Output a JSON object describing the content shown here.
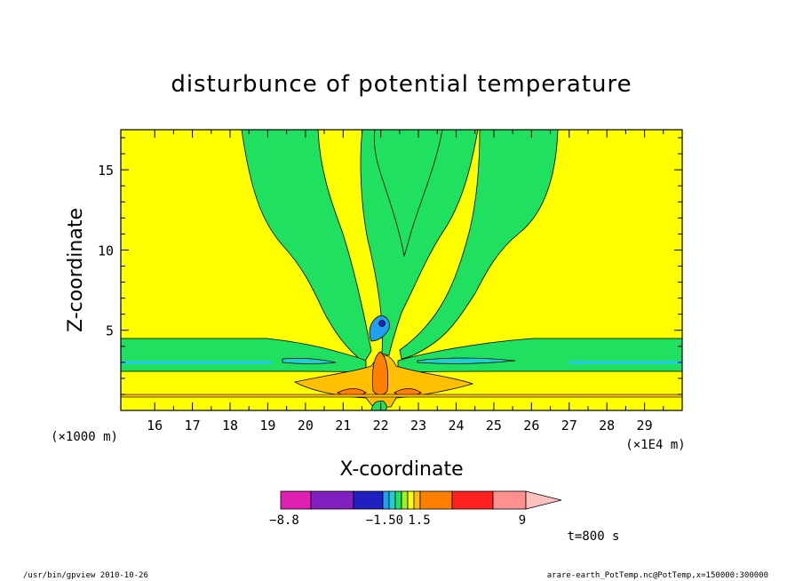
{
  "chart_data": {
    "type": "heatmap",
    "title": "disturbunce of potential temperature",
    "xlabel": "X-coordinate",
    "ylabel": "Z-coordinate",
    "x_scale_note": "(×1E4 m)",
    "y_scale_note": "(×1000 m)",
    "xlim": [
      15.1,
      30.0
    ],
    "ylim": [
      0.0,
      17.5
    ],
    "x_ticks": [
      "16",
      "17",
      "18",
      "19",
      "20",
      "21",
      "22",
      "23",
      "24",
      "25",
      "26",
      "27",
      "28",
      "29"
    ],
    "y_ticks": [
      "5",
      "10",
      "15"
    ],
    "colorbar": {
      "labels": [
        "−8.8",
        "−1.50",
        "1.5",
        "9"
      ],
      "colors": [
        "#e020b0",
        "#8020c0",
        "#2020c0",
        "#20a0f0",
        "#20d0d0",
        "#20e060",
        "#a0f020",
        "#ffff00",
        "#ffc000",
        "#ff8000",
        "#ff2020",
        "#ff9090",
        "#ffc0c0"
      ]
    },
    "time_label": "t=800 s"
  },
  "footer": {
    "left": "/usr/bin/gpview  2010-10-26",
    "right": "arare-earth_PotTemp.nc@PotTemp,x=150000:300000"
  }
}
